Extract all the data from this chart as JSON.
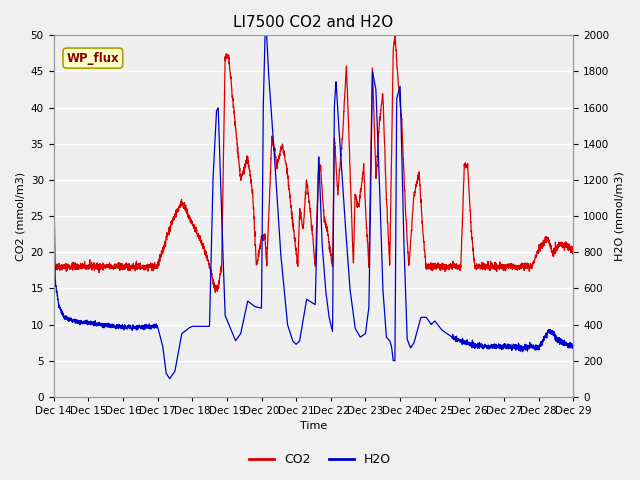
{
  "title": "LI7500 CO2 and H2O",
  "xlabel": "Time",
  "ylabel_left": "CO2 (mmol/m3)",
  "ylabel_right": "H2O (mmol/m3)",
  "ylim_left": [
    0,
    50
  ],
  "ylim_right": [
    0,
    2000
  ],
  "yticks_left": [
    0,
    5,
    10,
    15,
    20,
    25,
    30,
    35,
    40,
    45,
    50
  ],
  "yticks_right": [
    0,
    200,
    400,
    600,
    800,
    1000,
    1200,
    1400,
    1600,
    1800,
    2000
  ],
  "xtick_labels": [
    "Dec 14",
    "Dec 15",
    "Dec 16",
    "Dec 17",
    "Dec 18",
    "Dec 19",
    "Dec 20",
    "Dec 21",
    "Dec 22",
    "Dec 23",
    "Dec 24",
    "Dec 25",
    "Dec 26",
    "Dec 27",
    "Dec 28",
    "Dec 29"
  ],
  "co2_color": "#dd0000",
  "h2o_color": "#0000cc",
  "fig_facecolor": "#f0f0f0",
  "plot_facecolor": "#efefef",
  "grid_color": "#ffffff",
  "legend_label_co2": "CO2",
  "legend_label_h2o": "H2O",
  "annotation_text": "WP_flux",
  "annotation_facecolor": "#ffffcc",
  "annotation_edgecolor": "#aaa000",
  "annotation_text_color": "#880000",
  "title_fontsize": 11,
  "axis_label_fontsize": 8,
  "tick_fontsize": 7.5,
  "legend_fontsize": 9,
  "linewidth": 0.9
}
